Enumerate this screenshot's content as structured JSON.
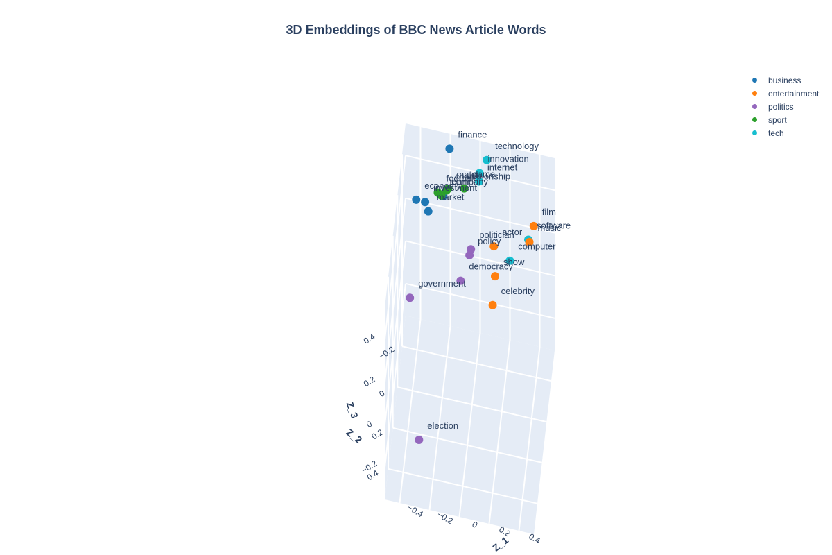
{
  "chart_data": {
    "type": "scatter3d",
    "title": "3D Embeddings of BBC News Article Words",
    "axes": {
      "x": {
        "title": "Z_1",
        "range": [
          -0.5,
          0.5
        ],
        "ticks": [
          -0.4,
          -0.2,
          0,
          0.2,
          0.4
        ],
        "tick_labels": [
          "−0.4",
          "−0.2",
          "0",
          "0.2",
          "0.4"
        ]
      },
      "y": {
        "title": "Z_2",
        "range": [
          -0.35,
          0.55
        ],
        "ticks": [
          -0.2,
          0,
          0.2,
          0.4
        ],
        "tick_labels": [
          "−0.2",
          "0",
          "0.2",
          "0.4"
        ]
      },
      "z": {
        "title": "Z_3",
        "range": [
          -0.35,
          0.55
        ],
        "ticks": [
          -0.2,
          0,
          0.2,
          0.4
        ],
        "tick_labels": [
          "−0.2",
          "0",
          "0.2",
          "0.4"
        ]
      }
    },
    "legend": {
      "position": "top-right"
    },
    "series": [
      {
        "name": "business",
        "color": "#1f77b4",
        "points": [
          {
            "label": "economy",
            "x": -0.39,
            "y": -0.1,
            "z": 0.45
          },
          {
            "label": "finance",
            "x": -0.21,
            "y": -0.38,
            "z": 0.45
          },
          {
            "label": "investment",
            "x": -0.34,
            "y": -0.16,
            "z": 0.39
          },
          {
            "label": "market",
            "x": -0.32,
            "y": -0.17,
            "z": 0.34
          },
          {
            "label": "company",
            "x": -0.24,
            "y": -0.3,
            "z": 0.3
          }
        ]
      },
      {
        "name": "entertainment",
        "color": "#ff7f0e",
        "points": [
          {
            "label": "film",
            "x": 0.35,
            "y": -0.41,
            "z": 0.15
          },
          {
            "label": "music",
            "x": 0.33,
            "y": -0.35,
            "z": 0.13
          },
          {
            "label": "actor",
            "x": 0.1,
            "y": -0.3,
            "z": 0.12
          },
          {
            "label": "show",
            "x": 0.12,
            "y": -0.22,
            "z": 0.06
          },
          {
            "label": "celebrity",
            "x": 0.12,
            "y": -0.12,
            "z": 0.02
          }
        ]
      },
      {
        "name": "politics",
        "color": "#9467bd",
        "points": [
          {
            "label": "government",
            "x": -0.4,
            "y": 0.11,
            "z": 0.19
          },
          {
            "label": "election",
            "x": -0.3,
            "y": 0.36,
            "z": -0.22
          },
          {
            "label": "politician",
            "x": -0.04,
            "y": -0.21,
            "z": 0.17
          },
          {
            "label": "policy",
            "x": -0.05,
            "y": -0.21,
            "z": 0.14
          },
          {
            "label": "democracy",
            "x": -0.1,
            "y": -0.15,
            "z": 0.07
          }
        ]
      },
      {
        "name": "sport",
        "color": "#2ca02c",
        "points": [
          {
            "label": "match",
            "x": -0.21,
            "y": -0.32,
            "z": 0.32
          },
          {
            "label": "championship",
            "x": -0.22,
            "y": -0.31,
            "z": 0.32
          },
          {
            "label": "football",
            "x": -0.27,
            "y": -0.26,
            "z": 0.35
          },
          {
            "label": "team",
            "x": -0.25,
            "y": -0.28,
            "z": 0.32
          },
          {
            "label": "game",
            "x": -0.11,
            "y": -0.37,
            "z": 0.29
          }
        ]
      },
      {
        "name": "tech",
        "color": "#17becf",
        "points": [
          {
            "label": "technology",
            "x": 0.02,
            "y": -0.51,
            "z": 0.31
          },
          {
            "label": "innovation",
            "x": -0.02,
            "y": -0.45,
            "z": 0.3
          },
          {
            "label": "internet",
            "x": -0.02,
            "y": -0.43,
            "z": 0.28
          },
          {
            "label": "software",
            "x": 0.32,
            "y": -0.37,
            "z": 0.12
          },
          {
            "label": "computer",
            "x": 0.21,
            "y": -0.28,
            "z": 0.09
          }
        ]
      }
    ]
  }
}
